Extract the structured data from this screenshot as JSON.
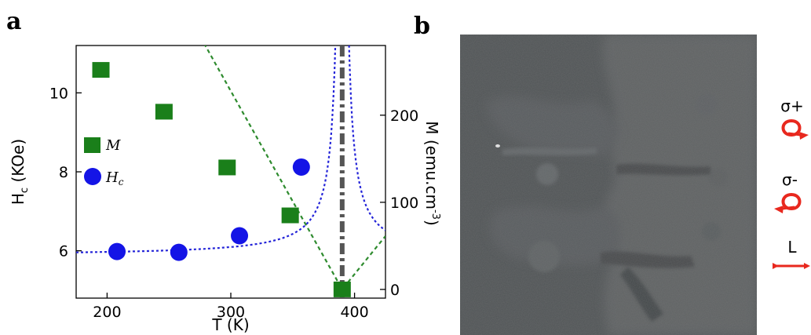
{
  "panels": {
    "a_label": "a",
    "b_label": "b"
  },
  "chart_data": {
    "type": "scatter",
    "xlabel": "T (K)",
    "ylabel_left_main": "H",
    "ylabel_left_sub": "c",
    "ylabel_left_tail": " (KOe)",
    "ylabel_right_main": "M (emu.cm",
    "ylabel_right_sup": "-3",
    "ylabel_right_tail": ")",
    "xlim": [
      175,
      425
    ],
    "ylim_left": [
      4.8,
      11.2
    ],
    "ylim_right": [
      -10,
      280
    ],
    "xticks": [
      200,
      300,
      400
    ],
    "yticks_left": [
      6,
      8,
      10
    ],
    "yticks_right": [
      0,
      100,
      200
    ],
    "vline_x": 390,
    "series": [
      {
        "name": "M",
        "axis": "right",
        "marker": "square",
        "color": "#1a7f1a",
        "x": [
          195,
          246,
          297,
          348,
          390
        ],
        "y": [
          252,
          204,
          140,
          85,
          0
        ]
      },
      {
        "name": "H",
        "name_sub": "c",
        "axis": "left",
        "marker": "circle",
        "color": "#1414e6",
        "x": [
          208,
          258,
          307,
          357
        ],
        "y": [
          5.98,
          5.96,
          6.38,
          8.12
        ]
      }
    ],
    "fits": [
      {
        "name": "M-fit",
        "color": "#2e8b2e"
      },
      {
        "name": "Hc-fit",
        "color": "#2424d8"
      }
    ]
  },
  "image_b": {
    "polarizations": [
      {
        "label": "σ+",
        "kind": "circular-cw"
      },
      {
        "label": "σ-",
        "kind": "circular-ccw"
      },
      {
        "label": "L",
        "kind": "linear"
      }
    ],
    "arrow_color": "#e8281e"
  }
}
